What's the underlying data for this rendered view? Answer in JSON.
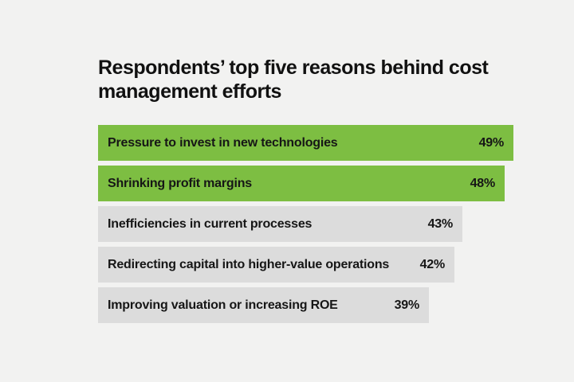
{
  "page": {
    "background_color": "#f2f2f1"
  },
  "chart_data": {
    "type": "bar",
    "orientation": "horizontal",
    "title": "Respondents’ top five reasons behind cost management efforts",
    "categories": [
      "Pressure to invest in new technologies",
      "Shrinking profit margins",
      "Inefficiencies in current processes",
      "Redirecting capital into higher-value operations",
      "Improving valuation or increasing ROE"
    ],
    "values": [
      49,
      48,
      43,
      42,
      39
    ],
    "value_labels": [
      "49%",
      "48%",
      "43%",
      "42%",
      "39%"
    ],
    "unit": "%",
    "xlim": [
      0,
      49
    ],
    "highlighted": [
      true,
      true,
      false,
      false,
      false
    ],
    "colors": {
      "highlight_bar": "#7dbe42",
      "default_bar": "#dcdcdc",
      "title_text": "#111111",
      "bar_text": "#161616"
    },
    "grid": false,
    "legend": false,
    "value_label_position": "inside-right"
  }
}
